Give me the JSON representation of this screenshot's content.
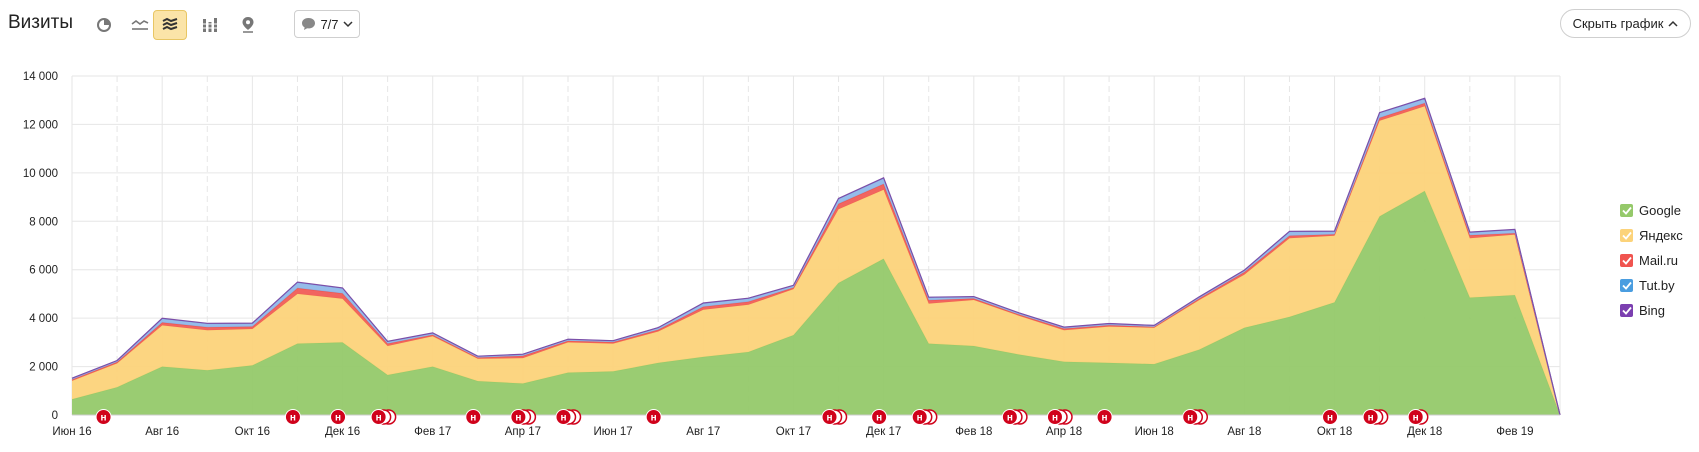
{
  "header": {
    "title": "Визиты",
    "notes_count": "7/7",
    "hide_chart_label": "Скрыть график"
  },
  "toolbar_icons": [
    "pie-chart-icon",
    "line-chart-icon",
    "stacked-area-icon",
    "bar-chart-icon",
    "map-pin-icon"
  ],
  "colors": {
    "google": "#95c96a",
    "yandex": "#fcd37a",
    "mailru": "#f0544f",
    "tutby": "#8ab5e8",
    "bing": "#7b4ea8",
    "note_marker": "#d0021b",
    "active_button": "#fbe4a8"
  },
  "chart_data": {
    "type": "area",
    "stacked": true,
    "x": [
      "Июн 16",
      "Июл 16",
      "Авг 16",
      "Сен 16",
      "Окт 16",
      "Ноя 16",
      "Дек 16",
      "Янв 17",
      "Фев 17",
      "Мар 17",
      "Апр 17",
      "Май 17",
      "Июн 17",
      "Июл 17",
      "Авг 17",
      "Сен 17",
      "Окт 17",
      "Ноя 17",
      "Дек 17",
      "Янв 18",
      "Фев 18",
      "Мар 18",
      "Апр 18",
      "Май 18",
      "Июн 18",
      "Июл 18",
      "Авг 18",
      "Сен 18",
      "Окт 18",
      "Ноя 18",
      "Дек 18",
      "Янв 19",
      "Фев 19",
      "Мар 19"
    ],
    "x_tick_labels": [
      "Июн 16",
      "Авг 16",
      "Окт 16",
      "Дек 16",
      "Фев 17",
      "Апр 17",
      "Июн 17",
      "Авг 17",
      "Окт 17",
      "Дек 17",
      "Фев 18",
      "Апр 18",
      "Июн 18",
      "Авг 18",
      "Окт 18",
      "Дек 18",
      "Фев 19"
    ],
    "y_ticks": [
      "0",
      "2 000",
      "4 000",
      "6 000",
      "8 000",
      "10 000",
      "12 000",
      "14 000"
    ],
    "ylim": [
      0,
      14000
    ],
    "grid": true,
    "legend_position": "right",
    "series": [
      {
        "name": "Google",
        "values": [
          650,
          1150,
          2000,
          1850,
          2050,
          2950,
          3000,
          1650,
          2000,
          1400,
          1300,
          1750,
          1800,
          2150,
          2400,
          2600,
          3300,
          5450,
          6450,
          2950,
          2850,
          2500,
          2200,
          2150,
          2100,
          2700,
          3600,
          4050,
          4650,
          8200,
          9250,
          4850,
          4950,
          0
        ]
      },
      {
        "name": "Яндекс",
        "values": [
          760,
          980,
          1700,
          1650,
          1500,
          2050,
          1800,
          1200,
          1250,
          920,
          1050,
          1250,
          1150,
          1300,
          1950,
          1950,
          1900,
          3050,
          2850,
          1650,
          1900,
          1600,
          1300,
          1500,
          1500,
          2050,
          2200,
          3250,
          2750,
          3950,
          3500,
          2450,
          2500,
          0
        ]
      },
      {
        "name": "Mail.ru",
        "values": [
          50,
          60,
          120,
          120,
          100,
          240,
          220,
          100,
          60,
          50,
          90,
          60,
          60,
          70,
          120,
          130,
          60,
          220,
          240,
          140,
          60,
          50,
          70,
          60,
          40,
          60,
          100,
          100,
          60,
          120,
          130,
          120,
          60,
          0
        ]
      },
      {
        "name": "Tut.by",
        "values": [
          50,
          50,
          160,
          150,
          130,
          230,
          210,
          80,
          70,
          50,
          60,
          60,
          50,
          80,
          140,
          130,
          80,
          200,
          230,
          110,
          70,
          60,
          50,
          60,
          50,
          60,
          70,
          170,
          120,
          200,
          180,
          120,
          140,
          0
        ]
      },
      {
        "name": "Bing",
        "values": [
          10,
          10,
          15,
          15,
          15,
          20,
          20,
          10,
          10,
          10,
          10,
          10,
          10,
          10,
          15,
          15,
          15,
          25,
          25,
          15,
          10,
          10,
          10,
          10,
          10,
          10,
          15,
          15,
          15,
          20,
          20,
          15,
          15,
          0
        ]
      }
    ],
    "note_markers": [
      {
        "month": 0.7,
        "count": 1
      },
      {
        "month": 4.9,
        "count": 1
      },
      {
        "month": 5.9,
        "count": 1
      },
      {
        "month": 6.8,
        "count": 3
      },
      {
        "month": 8.9,
        "count": 1
      },
      {
        "month": 9.9,
        "count": 3
      },
      {
        "month": 10.9,
        "count": 3
      },
      {
        "month": 12.9,
        "count": 1
      },
      {
        "month": 16.8,
        "count": 3
      },
      {
        "month": 17.9,
        "count": 1
      },
      {
        "month": 18.8,
        "count": 3
      },
      {
        "month": 20.8,
        "count": 3
      },
      {
        "month": 21.8,
        "count": 3
      },
      {
        "month": 22.9,
        "count": 1
      },
      {
        "month": 24.8,
        "count": 3
      },
      {
        "month": 27.9,
        "count": 1
      },
      {
        "month": 28.8,
        "count": 3
      },
      {
        "month": 29.8,
        "count": 2
      }
    ],
    "note_marker_letter": "н"
  },
  "legend": [
    {
      "label": "Google",
      "color": "#95c96a"
    },
    {
      "label": "Яндекс",
      "color": "#fcd37a"
    },
    {
      "label": "Mail.ru",
      "color": "#f0544f"
    },
    {
      "label": "Tut.by",
      "color": "#4a9de0"
    },
    {
      "label": "Bing",
      "color": "#7b3fb0"
    }
  ]
}
